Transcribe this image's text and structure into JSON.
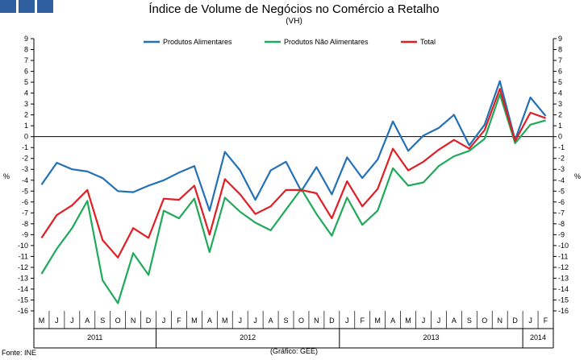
{
  "logo": {
    "name": "ine-logo-blocks",
    "color": "#2f5f9e"
  },
  "footer": {
    "source": "Fonte: INE",
    "credit": "(Gráfico: GEE)"
  },
  "chart_data": {
    "type": "line",
    "title": "Índice de Volume de Negócios no Comércio a Retalho",
    "subtitle": "(VH)",
    "ylabel_left": "%",
    "ylabel_right": "%",
    "ylim": [
      -16,
      9
    ],
    "yticks": [
      9,
      8,
      7,
      6,
      5,
      4,
      3,
      2,
      1,
      0,
      -1,
      -2,
      -3,
      -4,
      -5,
      -6,
      -7,
      -8,
      -9,
      -10,
      -11,
      -12,
      -13,
      -14,
      -15,
      -16
    ],
    "categories": [
      "M",
      "J",
      "J",
      "A",
      "S",
      "O",
      "N",
      "D",
      "J",
      "F",
      "M",
      "A",
      "M",
      "J",
      "J",
      "A",
      "S",
      "O",
      "N",
      "D",
      "J",
      "F",
      "M",
      "A",
      "M",
      "J",
      "J",
      "A",
      "S",
      "O",
      "N",
      "D",
      "J",
      "F"
    ],
    "years": [
      {
        "label": "2011",
        "start": 0,
        "end": 7
      },
      {
        "label": "2012",
        "start": 8,
        "end": 19
      },
      {
        "label": "2013",
        "start": 20,
        "end": 31
      },
      {
        "label": "2014",
        "start": 32,
        "end": 33
      }
    ],
    "legend_position": "top-center",
    "series": [
      {
        "name": "Produtos Alimentares",
        "color": "#2270b5",
        "values": [
          -4.4,
          -2.4,
          -3.0,
          -3.2,
          -3.8,
          -5.0,
          -5.1,
          -4.5,
          -4.0,
          -3.3,
          -2.7,
          -6.8,
          -1.4,
          -3.1,
          -5.8,
          -3.1,
          -2.3,
          -5.0,
          -2.8,
          -5.3,
          -1.9,
          -3.8,
          -2.1,
          1.4,
          -1.3,
          0.1,
          0.8,
          2.0,
          -0.8,
          1.1,
          5.1,
          -0.3,
          3.6,
          1.9
        ]
      },
      {
        "name": "Produtos Não Alimentares",
        "color": "#1faa59",
        "values": [
          -12.6,
          -10.3,
          -8.4,
          -5.9,
          -13.2,
          -15.3,
          -10.7,
          -12.7,
          -6.8,
          -7.5,
          -5.7,
          -10.6,
          -5.6,
          -6.9,
          -7.9,
          -8.6,
          -6.7,
          -4.8,
          -7.1,
          -9.1,
          -5.6,
          -8.1,
          -6.8,
          -2.9,
          -4.5,
          -4.2,
          -2.7,
          -1.8,
          -1.3,
          -0.2,
          3.9,
          -0.6,
          1.1,
          1.5
        ]
      },
      {
        "name": "Total",
        "color": "#e01e24",
        "values": [
          -9.3,
          -7.2,
          -6.3,
          -4.9,
          -9.5,
          -11.1,
          -8.4,
          -9.3,
          -5.7,
          -5.8,
          -4.5,
          -9.0,
          -3.9,
          -5.3,
          -7.1,
          -6.4,
          -4.9,
          -4.9,
          -5.2,
          -7.5,
          -4.1,
          -6.4,
          -4.8,
          -1.1,
          -3.1,
          -2.3,
          -1.2,
          -0.3,
          -1.1,
          0.6,
          4.4,
          -0.4,
          2.2,
          1.7
        ]
      }
    ]
  }
}
